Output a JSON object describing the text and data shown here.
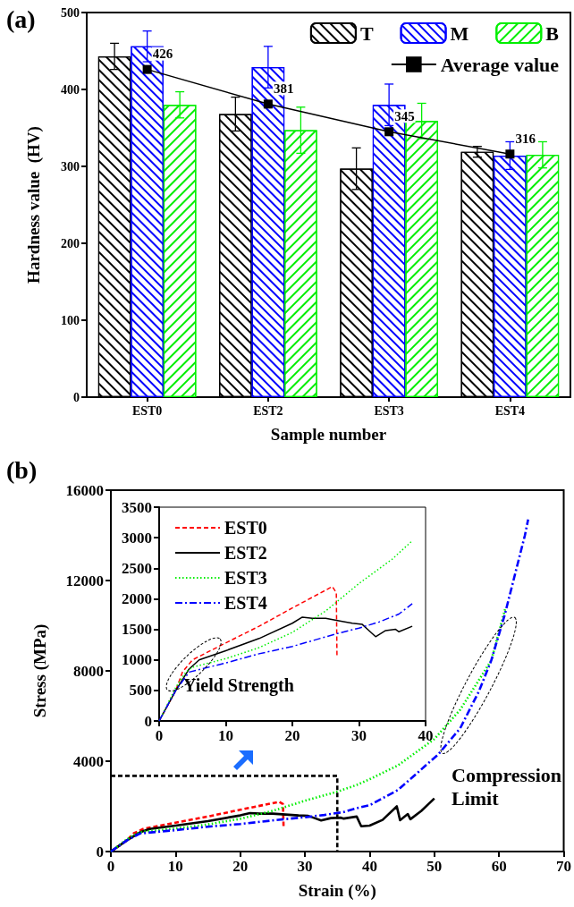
{
  "chart_data": [
    {
      "type": "bar",
      "title": "(a)",
      "xlabel": "Sample number",
      "ylabel": "Hardness value  (HV)",
      "categories": [
        "EST0",
        "EST2",
        "EST3",
        "EST4"
      ],
      "ylim": [
        0,
        500
      ],
      "yticks": [
        0,
        100,
        200,
        300,
        400,
        500
      ],
      "legend": "top right",
      "series": [
        {
          "name": "T",
          "color": "#000000",
          "values": [
            443,
            368,
            297,
            319
          ],
          "errors": [
            17,
            22,
            27,
            7
          ]
        },
        {
          "name": "M",
          "color": "#0000ff",
          "values": [
            456,
            429,
            380,
            314
          ],
          "errors": [
            20,
            27,
            27,
            18
          ]
        },
        {
          "name": "B",
          "color": "#00ee00",
          "values": [
            380,
            347,
            359,
            315
          ],
          "errors": [
            17,
            30,
            23,
            17
          ]
        },
        {
          "name": "Average value",
          "type": "line",
          "color": "#000000",
          "marker": "square",
          "values": [
            426,
            381,
            345,
            316
          ],
          "value_labels": [
            "426",
            "381",
            "345",
            "316"
          ]
        }
      ]
    },
    {
      "type": "line",
      "title": "(b)",
      "xlabel": "Strain (%)",
      "ylabel": "Stress (MPa)",
      "xlim": [
        0,
        70
      ],
      "xticks": [
        0,
        10,
        20,
        30,
        40,
        50,
        60,
        70
      ],
      "ylim": [
        0,
        16000
      ],
      "yticks": [
        0,
        4000,
        8000,
        12000,
        16000
      ],
      "marker": "none",
      "annotations": [
        "Compression Limit"
      ],
      "series": [
        {
          "color": "#ff0000",
          "line_style": "dashed",
          "x": [
            0,
            2.5,
            3.5,
            5,
            9.5,
            15,
            20,
            26,
            26.6,
            26.7
          ],
          "values": [
            0,
            500,
            800,
            1000,
            1250,
            1550,
            1850,
            2200,
            2100,
            1050
          ]
        },
        {
          "color": "#000000",
          "line_style": "solid",
          "x": [
            0,
            2.5,
            4.5,
            6,
            10,
            15,
            20,
            21.5,
            23,
            25,
            27.5,
            29,
            30.5,
            31.5,
            32.5,
            34,
            35.5,
            36,
            38,
            38.7,
            40,
            42,
            44.2,
            44.7,
            45.9,
            46.3,
            48,
            50
          ],
          "values": [
            0,
            500,
            850,
            1000,
            1150,
            1350,
            1600,
            1700,
            1680,
            1680,
            1630,
            1600,
            1580,
            1480,
            1380,
            1480,
            1500,
            1460,
            1550,
            1120,
            1150,
            1400,
            2000,
            1390,
            1660,
            1430,
            1800,
            2350
          ]
        },
        {
          "color": "#00ee00",
          "line_style": "dotted",
          "x": [
            0,
            2.5,
            4,
            5,
            10,
            15,
            20,
            25,
            30,
            35,
            38,
            40,
            44.4,
            50,
            54,
            58.8,
            61
          ],
          "values": [
            0,
            550,
            800,
            880,
            1020,
            1200,
            1450,
            1800,
            2250,
            2650,
            2950,
            3200,
            3820,
            4980,
            6280,
            8460,
            10800
          ]
        },
        {
          "color": "#0000ff",
          "line_style": "dashdot",
          "x": [
            0,
            2.5,
            4.5,
            10,
            15,
            20,
            26.7,
            30,
            33,
            36,
            38,
            40,
            44.4,
            50.6,
            54,
            56.9,
            58.8,
            60.9,
            64,
            64.5
          ],
          "values": [
            0,
            500,
            800,
            950,
            1100,
            1220,
            1430,
            1520,
            1620,
            1750,
            1920,
            2050,
            2730,
            4300,
            5460,
            7100,
            8460,
            10500,
            14000,
            14700
          ]
        },
        {
          "color": "#000000",
          "line_style": "dashed",
          "x": [
            0,
            35,
            35
          ],
          "values": [
            3350,
            3350,
            0
          ]
        }
      ]
    },
    {
      "type": "line",
      "xlim": [
        0,
        40
      ],
      "xticks": [
        0,
        10,
        20,
        30,
        40
      ],
      "ylim": [
        0,
        3500
      ],
      "yticks": [
        0,
        500,
        1000,
        1500,
        2000,
        2500,
        3000,
        3500
      ],
      "marker": "none",
      "legend": "top left",
      "annotations": [
        "Yield Strength"
      ],
      "series": [
        {
          "name": "EST0",
          "color": "#ff0000",
          "line_style": "dashed",
          "x": [
            0,
            2.5,
            3.5,
            5,
            9.5,
            15,
            20,
            26,
            26.6,
            26.7
          ],
          "values": [
            0,
            500,
            800,
            1000,
            1250,
            1550,
            1850,
            2200,
            2100,
            1050
          ]
        },
        {
          "name": "EST2",
          "color": "#000000",
          "line_style": "solid",
          "x": [
            0,
            2.5,
            4.5,
            6,
            10,
            15,
            20,
            21.5,
            23,
            25,
            27.5,
            29,
            30.5,
            31.5,
            32.5,
            34,
            35.5,
            36,
            38
          ],
          "values": [
            0,
            500,
            850,
            1000,
            1150,
            1350,
            1600,
            1700,
            1680,
            1680,
            1630,
            1600,
            1580,
            1480,
            1380,
            1480,
            1500,
            1460,
            1550
          ]
        },
        {
          "name": "EST3",
          "color": "#00ee00",
          "line_style": "dotted",
          "x": [
            0,
            2.5,
            4,
            5,
            10,
            15,
            20,
            25,
            30,
            35,
            38
          ],
          "values": [
            0,
            550,
            800,
            880,
            1020,
            1200,
            1450,
            1800,
            2250,
            2650,
            2950
          ]
        },
        {
          "name": "EST4",
          "color": "#0000ff",
          "line_style": "dashdot",
          "x": [
            0,
            2.5,
            4.5,
            10,
            15,
            20,
            26.7,
            30,
            33,
            36,
            38
          ],
          "values": [
            0,
            500,
            800,
            950,
            1100,
            1220,
            1430,
            1520,
            1620,
            1750,
            1920
          ]
        }
      ]
    }
  ]
}
